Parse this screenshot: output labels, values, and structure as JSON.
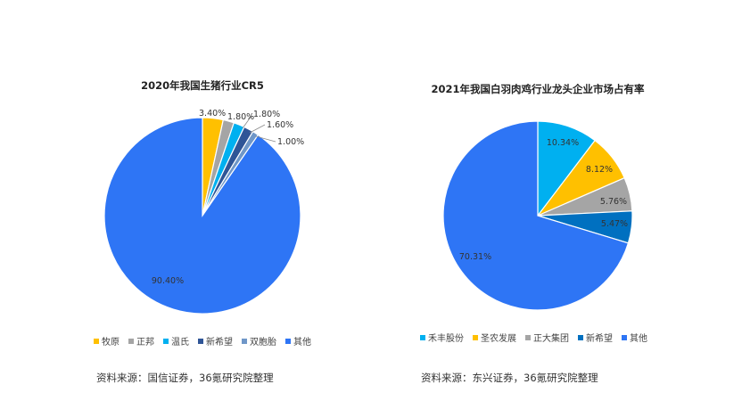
{
  "chart_data": [
    {
      "type": "pie",
      "title": "2020年我国生猪行业CR5",
      "categories": [
        "牧原",
        "正邦",
        "温氏",
        "新希望",
        "双胞胎",
        "其他"
      ],
      "values": [
        3.4,
        1.8,
        1.8,
        1.6,
        1.0,
        90.4
      ],
      "labels": [
        "3.40%",
        "1.80%",
        "1.80%",
        "1.60%",
        "1.00%",
        "90.40%"
      ],
      "colors": [
        "#FFC000",
        "#A5A5A5",
        "#00B0F0",
        "#2F5597",
        "#6F97C8",
        "#2E75F5"
      ],
      "start_angle": 0,
      "direction": "clockwise",
      "legend_position": "bottom",
      "source": "资料来源：国信证券，36氪研究院整理"
    },
    {
      "type": "pie",
      "title": "2021年我国白羽肉鸡行业龙头企业市场占有率",
      "categories": [
        "禾丰股份",
        "圣农发展",
        "正大集团",
        "新希望",
        "其他"
      ],
      "values": [
        10.34,
        8.12,
        5.76,
        5.47,
        70.31
      ],
      "labels": [
        "10.34%",
        "8.12%",
        "5.76%",
        "5.47%",
        "70.31%"
      ],
      "colors": [
        "#00B0F0",
        "#FFC000",
        "#A5A5A5",
        "#0070C0",
        "#2E75F5"
      ],
      "start_angle": 0,
      "direction": "clockwise",
      "legend_position": "bottom",
      "source": "资料来源：东兴证券，36氪研究院整理"
    }
  ]
}
